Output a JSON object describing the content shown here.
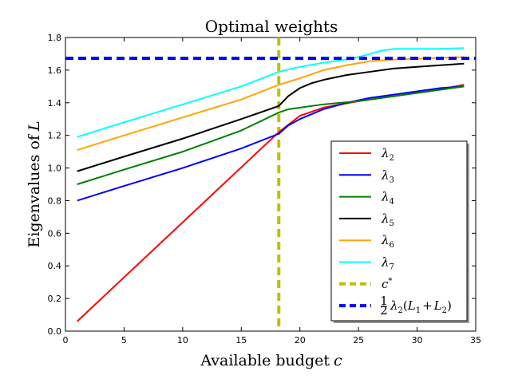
{
  "chart_data": {
    "type": "line",
    "title": "Optimal weights",
    "xlabel": "Available budget",
    "xlabel_var": "c",
    "ylabel": "Eigenvalues of",
    "ylabel_var": "L",
    "xlim": [
      0,
      35
    ],
    "ylim": [
      0.0,
      1.8
    ],
    "xticks": [
      0,
      5,
      10,
      15,
      20,
      25,
      30,
      35
    ],
    "yticks": [
      0.0,
      0.2,
      0.4,
      0.6,
      0.8,
      1.0,
      1.2,
      1.4,
      1.6,
      1.8
    ],
    "xtick_labels": [
      "0",
      "5",
      "10",
      "15",
      "20",
      "25",
      "30",
      "35"
    ],
    "ytick_labels": [
      "0.0",
      "0.2",
      "0.4",
      "0.6",
      "0.8",
      "1.0",
      "1.2",
      "1.4",
      "1.6",
      "1.8"
    ],
    "grid": false,
    "legend_position": "lower-right",
    "series": [
      {
        "name": "λ2",
        "sym": "λ",
        "sub": "2",
        "color": "#ff0000",
        "x": [
          1,
          18.2,
          20,
          22,
          25,
          28,
          31,
          34
        ],
        "y": [
          0.06,
          1.22,
          1.32,
          1.37,
          1.41,
          1.44,
          1.47,
          1.51
        ]
      },
      {
        "name": "λ3",
        "sym": "λ",
        "sub": "3",
        "color": "#0000ff",
        "x": [
          1,
          5,
          10,
          15,
          18.2,
          19,
          20,
          21,
          22,
          24,
          26,
          28,
          30,
          32,
          34
        ],
        "y": [
          0.8,
          0.89,
          1.0,
          1.12,
          1.21,
          1.26,
          1.3,
          1.33,
          1.36,
          1.4,
          1.43,
          1.45,
          1.47,
          1.49,
          1.5
        ]
      },
      {
        "name": "λ4",
        "sym": "λ",
        "sub": "4",
        "color": "#008000",
        "x": [
          1,
          5,
          10,
          15,
          18.2,
          19,
          20,
          22,
          25,
          28,
          31,
          34
        ],
        "y": [
          0.9,
          0.99,
          1.1,
          1.23,
          1.34,
          1.36,
          1.37,
          1.39,
          1.41,
          1.44,
          1.47,
          1.5
        ]
      },
      {
        "name": "λ5",
        "sym": "λ",
        "sub": "5",
        "color": "#000000",
        "x": [
          1,
          5,
          10,
          15,
          18.2,
          19,
          20,
          21,
          22,
          24,
          26,
          28,
          30,
          32,
          34
        ],
        "y": [
          0.98,
          1.07,
          1.18,
          1.3,
          1.38,
          1.44,
          1.49,
          1.52,
          1.54,
          1.57,
          1.59,
          1.61,
          1.62,
          1.63,
          1.64
        ]
      },
      {
        "name": "λ6",
        "sym": "λ",
        "sub": "6",
        "color": "#ffa500",
        "x": [
          1,
          5,
          10,
          15,
          18.2,
          20,
          22,
          24,
          26,
          28,
          30,
          32,
          34
        ],
        "y": [
          1.11,
          1.2,
          1.31,
          1.42,
          1.51,
          1.55,
          1.6,
          1.63,
          1.655,
          1.665,
          1.67,
          1.675,
          1.68
        ]
      },
      {
        "name": "λ7",
        "sym": "λ",
        "sub": "7",
        "color": "#00ffff",
        "x": [
          1,
          5,
          10,
          15,
          18.2,
          20,
          22,
          24,
          25,
          26,
          27,
          28,
          30,
          32,
          34
        ],
        "y": [
          1.19,
          1.28,
          1.39,
          1.5,
          1.59,
          1.62,
          1.645,
          1.665,
          1.68,
          1.7,
          1.72,
          1.73,
          1.73,
          1.73,
          1.735
        ]
      }
    ],
    "reference_lines": [
      {
        "name": "c*",
        "label_main": "c",
        "label_sup": "*",
        "orientation": "vertical",
        "value": 18.2,
        "color": "#bfbf00"
      },
      {
        "name": "½λ2(L1+L2)",
        "label_frac_num": "1",
        "label_frac_den": "2",
        "label_rest": "λ",
        "label_sub": "2",
        "label_paren_open": "(",
        "label_l1": "L",
        "label_l1_sub": "1",
        "label_plus": "+",
        "label_l2": "L",
        "label_l2_sub": "2",
        "label_paren_close": ")",
        "orientation": "horizontal",
        "value": 1.672,
        "color": "#0000ff"
      }
    ]
  }
}
